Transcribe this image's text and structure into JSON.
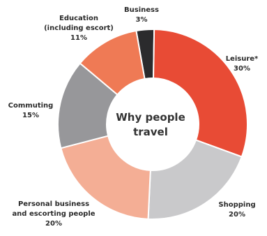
{
  "chart_data": {
    "type": "pie",
    "title": "Why people travel",
    "slices": [
      {
        "label_lines": [
          "Business"
        ],
        "percent_label": "3%",
        "value": 3,
        "color": "#2b2b2d"
      },
      {
        "label_lines": [
          "Leisure*"
        ],
        "percent_label": "30%",
        "value": 30,
        "color": "#e84b35"
      },
      {
        "label_lines": [
          "Shopping"
        ],
        "percent_label": "20%",
        "value": 20,
        "color": "#c9c9cb"
      },
      {
        "label_lines": [
          "Personal business",
          "and escorting people"
        ],
        "percent_label": "20%",
        "value": 20,
        "color": "#f4ae95"
      },
      {
        "label_lines": [
          "Commuting"
        ],
        "percent_label": "15%",
        "value": 15,
        "color": "#97979a"
      },
      {
        "label_lines": [
          "Education",
          "(including escort)"
        ],
        "percent_label": "11%",
        "value": 11,
        "color": "#ef7a55"
      }
    ],
    "donut": true
  }
}
